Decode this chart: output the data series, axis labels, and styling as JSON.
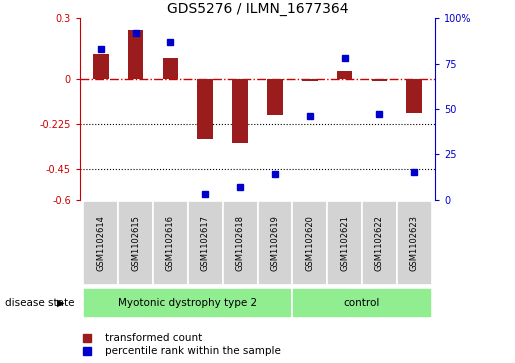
{
  "title": "GDS5276 / ILMN_1677364",
  "samples": [
    "GSM1102614",
    "GSM1102615",
    "GSM1102616",
    "GSM1102617",
    "GSM1102618",
    "GSM1102619",
    "GSM1102620",
    "GSM1102621",
    "GSM1102622",
    "GSM1102623"
  ],
  "red_values": [
    0.12,
    0.24,
    0.1,
    -0.3,
    -0.32,
    -0.18,
    -0.01,
    0.04,
    -0.01,
    -0.17
  ],
  "blue_values": [
    83,
    92,
    87,
    3,
    7,
    14,
    46,
    78,
    47,
    15
  ],
  "ylim_left": [
    -0.6,
    0.3
  ],
  "ylim_right": [
    0,
    100
  ],
  "yticks_left": [
    -0.6,
    -0.45,
    -0.225,
    0.0,
    0.3
  ],
  "yticks_right": [
    0,
    25,
    50,
    75,
    100
  ],
  "ytick_labels_left": [
    "-0.6",
    "-0.45",
    "-0.225",
    "0",
    "0.3"
  ],
  "ytick_labels_right": [
    "0",
    "25",
    "50",
    "75",
    "100%"
  ],
  "hlines": [
    -0.225,
    -0.45
  ],
  "group1_label": "Myotonic dystrophy type 2",
  "group2_label": "control",
  "group1_count": 6,
  "group2_count": 4,
  "disease_state_label": "disease state",
  "legend_red": "transformed count",
  "legend_blue": "percentile rank within the sample",
  "bar_color": "#9b1c1c",
  "dot_color": "#0000cc",
  "group_color": "#90ee90",
  "sample_box_color": "#d3d3d3",
  "zero_line_color": "#cc0000",
  "hline_color": "#000000",
  "left_axis_color": "#cc0000",
  "right_axis_color": "#0000cc"
}
